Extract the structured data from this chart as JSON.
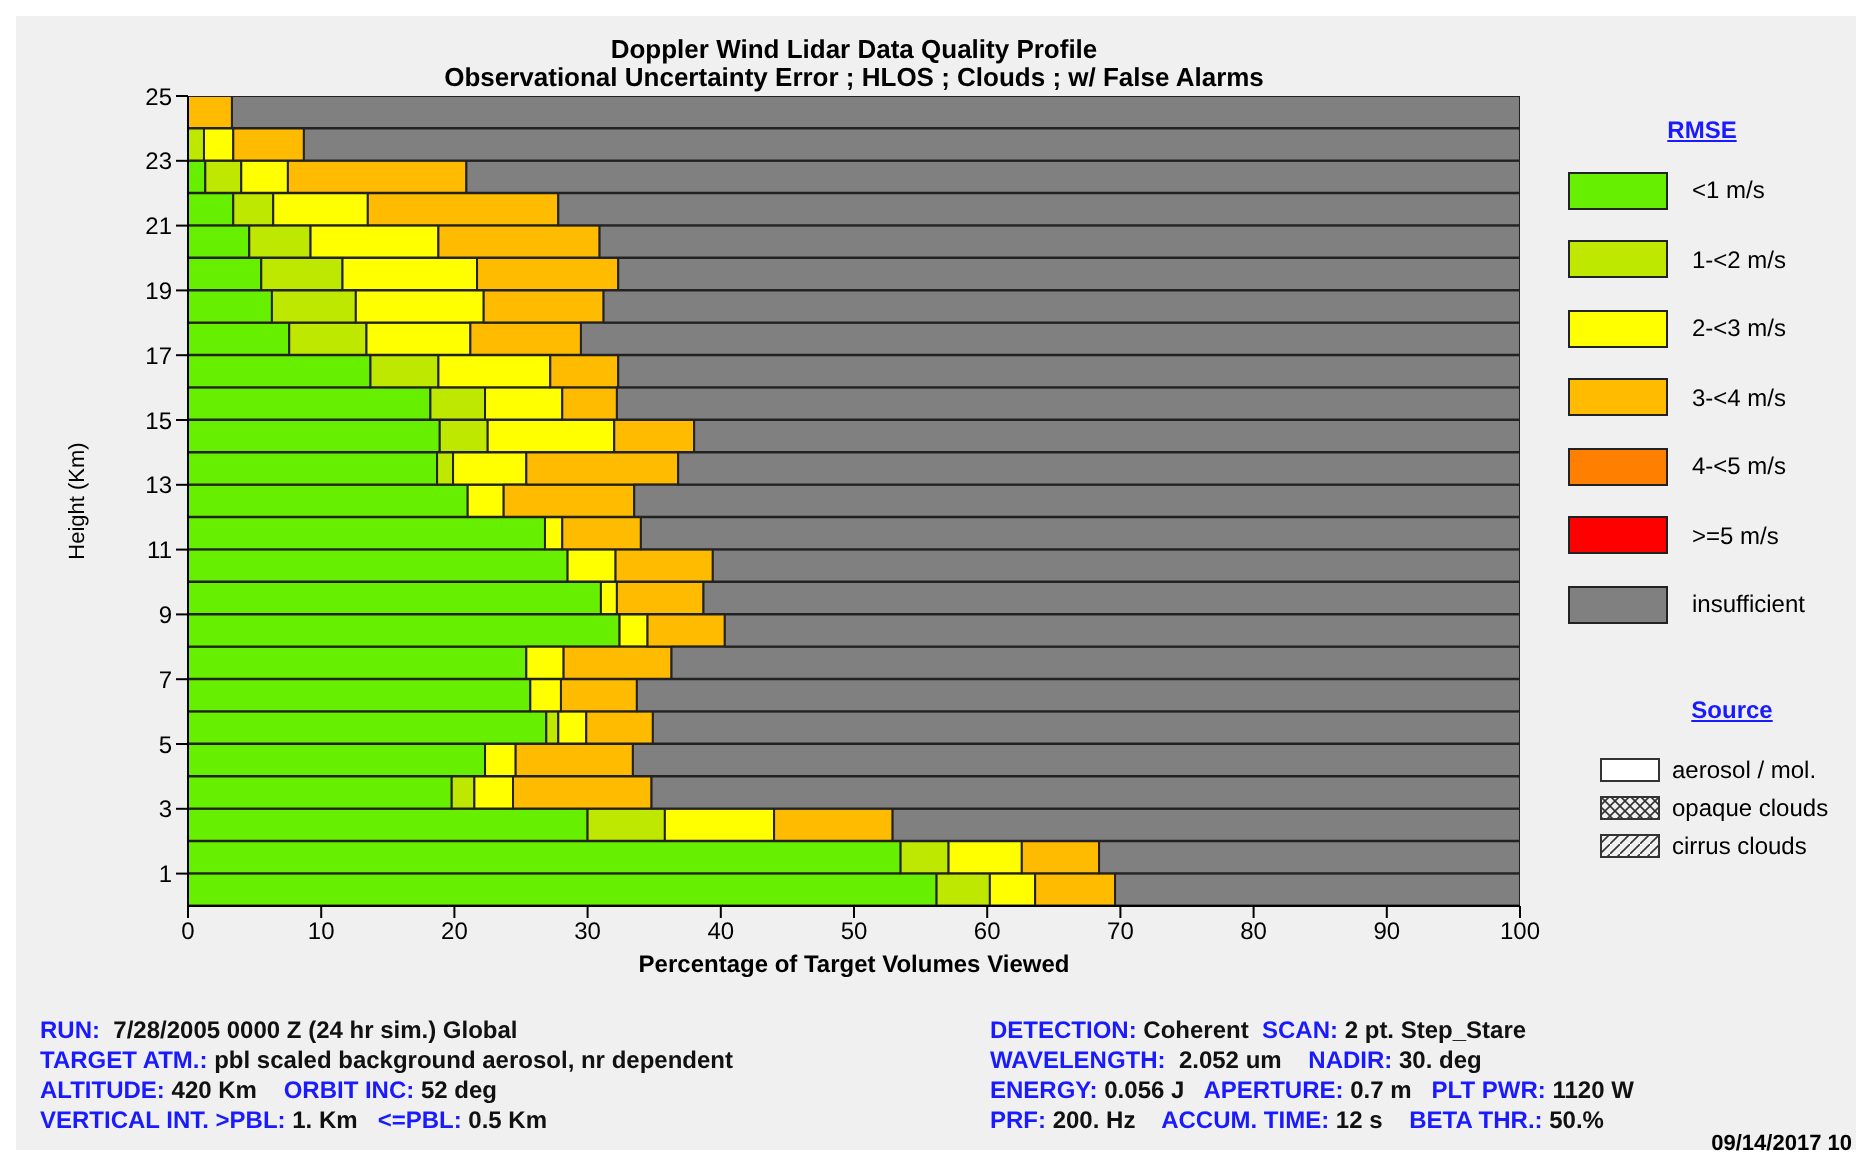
{
  "chart_data": {
    "type": "bar",
    "orientation": "horizontal",
    "stacked": true,
    "title": "Doppler Wind Lidar Data Quality Profile",
    "subtitle": "Observational Uncertainty Error ; HLOS ; Clouds ; w/ False Alarms",
    "xlabel": "Percentage of Target Volumes Viewed",
    "ylabel": "Height (Km)",
    "x": [
      0.5,
      1.5,
      2.5,
      3.5,
      4.5,
      5.5,
      6.5,
      7.5,
      8.5,
      9.5,
      10.5,
      11.5,
      12.5,
      13.5,
      14.5,
      15.5,
      16.5,
      17.5,
      18.5,
      19.5,
      20.5,
      21.5,
      22.5,
      23.5,
      24.5
    ],
    "xlim": [
      0,
      100
    ],
    "xticks": [
      0,
      10,
      20,
      30,
      40,
      50,
      60,
      70,
      80,
      90,
      100
    ],
    "ylim": [
      0,
      25
    ],
    "yticks": [
      1,
      3,
      5,
      7,
      9,
      11,
      13,
      15,
      17,
      19,
      21,
      23,
      25
    ],
    "legend": "right",
    "legend_title": "RMSE",
    "series": [
      {
        "name": "<1 m/s",
        "color": "#66f000",
        "values": [
          56.2,
          53.5,
          30.0,
          19.8,
          22.3,
          26.9,
          25.7,
          25.4,
          32.4,
          31.0,
          28.5,
          26.8,
          21.0,
          18.7,
          18.9,
          18.2,
          13.7,
          7.6,
          6.3,
          5.5,
          4.6,
          3.4,
          1.3,
          0,
          0
        ]
      },
      {
        "name": "1-<2 m/s",
        "color": "#bfe800",
        "values": [
          4.0,
          3.6,
          5.8,
          1.7,
          0,
          0.9,
          0,
          0,
          0,
          0,
          0,
          0,
          0,
          1.2,
          3.6,
          4.1,
          5.1,
          5.8,
          6.3,
          6.1,
          4.6,
          3.0,
          2.7,
          1.2,
          0
        ]
      },
      {
        "name": "2-<3 m/s",
        "color": "#ffff00",
        "values": [
          3.4,
          5.5,
          8.2,
          2.9,
          2.3,
          2.1,
          2.3,
          2.8,
          2.1,
          1.2,
          3.6,
          1.3,
          2.7,
          5.5,
          9.5,
          5.8,
          8.4,
          7.8,
          9.6,
          10.1,
          9.6,
          7.1,
          3.5,
          2.2,
          0
        ]
      },
      {
        "name": "3-<4 m/s",
        "color": "#ffbb00",
        "values": [
          6.0,
          5.8,
          8.9,
          10.4,
          8.8,
          5.0,
          5.7,
          8.1,
          5.8,
          6.5,
          7.3,
          5.9,
          9.8,
          11.4,
          6.0,
          4.1,
          5.1,
          8.3,
          9.0,
          10.6,
          12.1,
          14.3,
          13.4,
          5.3,
          3.3
        ]
      },
      {
        "name": "4-<5 m/s",
        "color": "#ff7f00",
        "values": [
          0,
          0,
          0,
          0,
          0,
          0,
          0,
          0,
          0,
          0,
          0,
          0,
          0,
          0,
          0,
          0,
          0,
          0,
          0,
          0,
          0,
          0,
          0,
          0,
          0
        ]
      },
      {
        "name": ">=5 m/s",
        "color": "#ff0000",
        "values": [
          0,
          0,
          0,
          0,
          0,
          0,
          0,
          0,
          0,
          0,
          0,
          0,
          0,
          0,
          0,
          0,
          0,
          0,
          0,
          0,
          0,
          0,
          0,
          0,
          0
        ]
      },
      {
        "name": "insufficient",
        "color": "#808080",
        "values": [
          30.4,
          31.6,
          47.1,
          65.2,
          66.6,
          65.1,
          66.3,
          63.7,
          59.7,
          61.3,
          60.6,
          66.0,
          66.5,
          63.2,
          62.0,
          67.8,
          67.7,
          70.5,
          68.8,
          67.7,
          69.1,
          72.2,
          79.1,
          91.3,
          96.7
        ]
      }
    ],
    "annotations": [
      "Source",
      "aerosol / mol.",
      "opaque clouds",
      "cirrus clouds",
      "RUN:  7/28/2005 0000 Z (24 hr sim.) Global",
      "TARGET ATM.: pbl scaled background aerosol, nr dependent",
      "ALTITUDE: 420 Km    ORBIT INC: 52 deg",
      "VERTICAL INT. >PBL: 1. Km   <=PBL: 0.5 Km",
      "DETECTION: Coherent  SCAN: 2 pt. Step_Stare",
      "WAVELENGTH:  2.052 um    NADIR: 30. deg",
      "ENERGY: 0.056 J   APERTURE: 0.7 m   PLT PWR: 1120 W",
      "PRF: 200. Hz    ACCUM. TIME: 12 s    BETA THR.: 50.%",
      "09/14/2017 10"
    ]
  }
}
